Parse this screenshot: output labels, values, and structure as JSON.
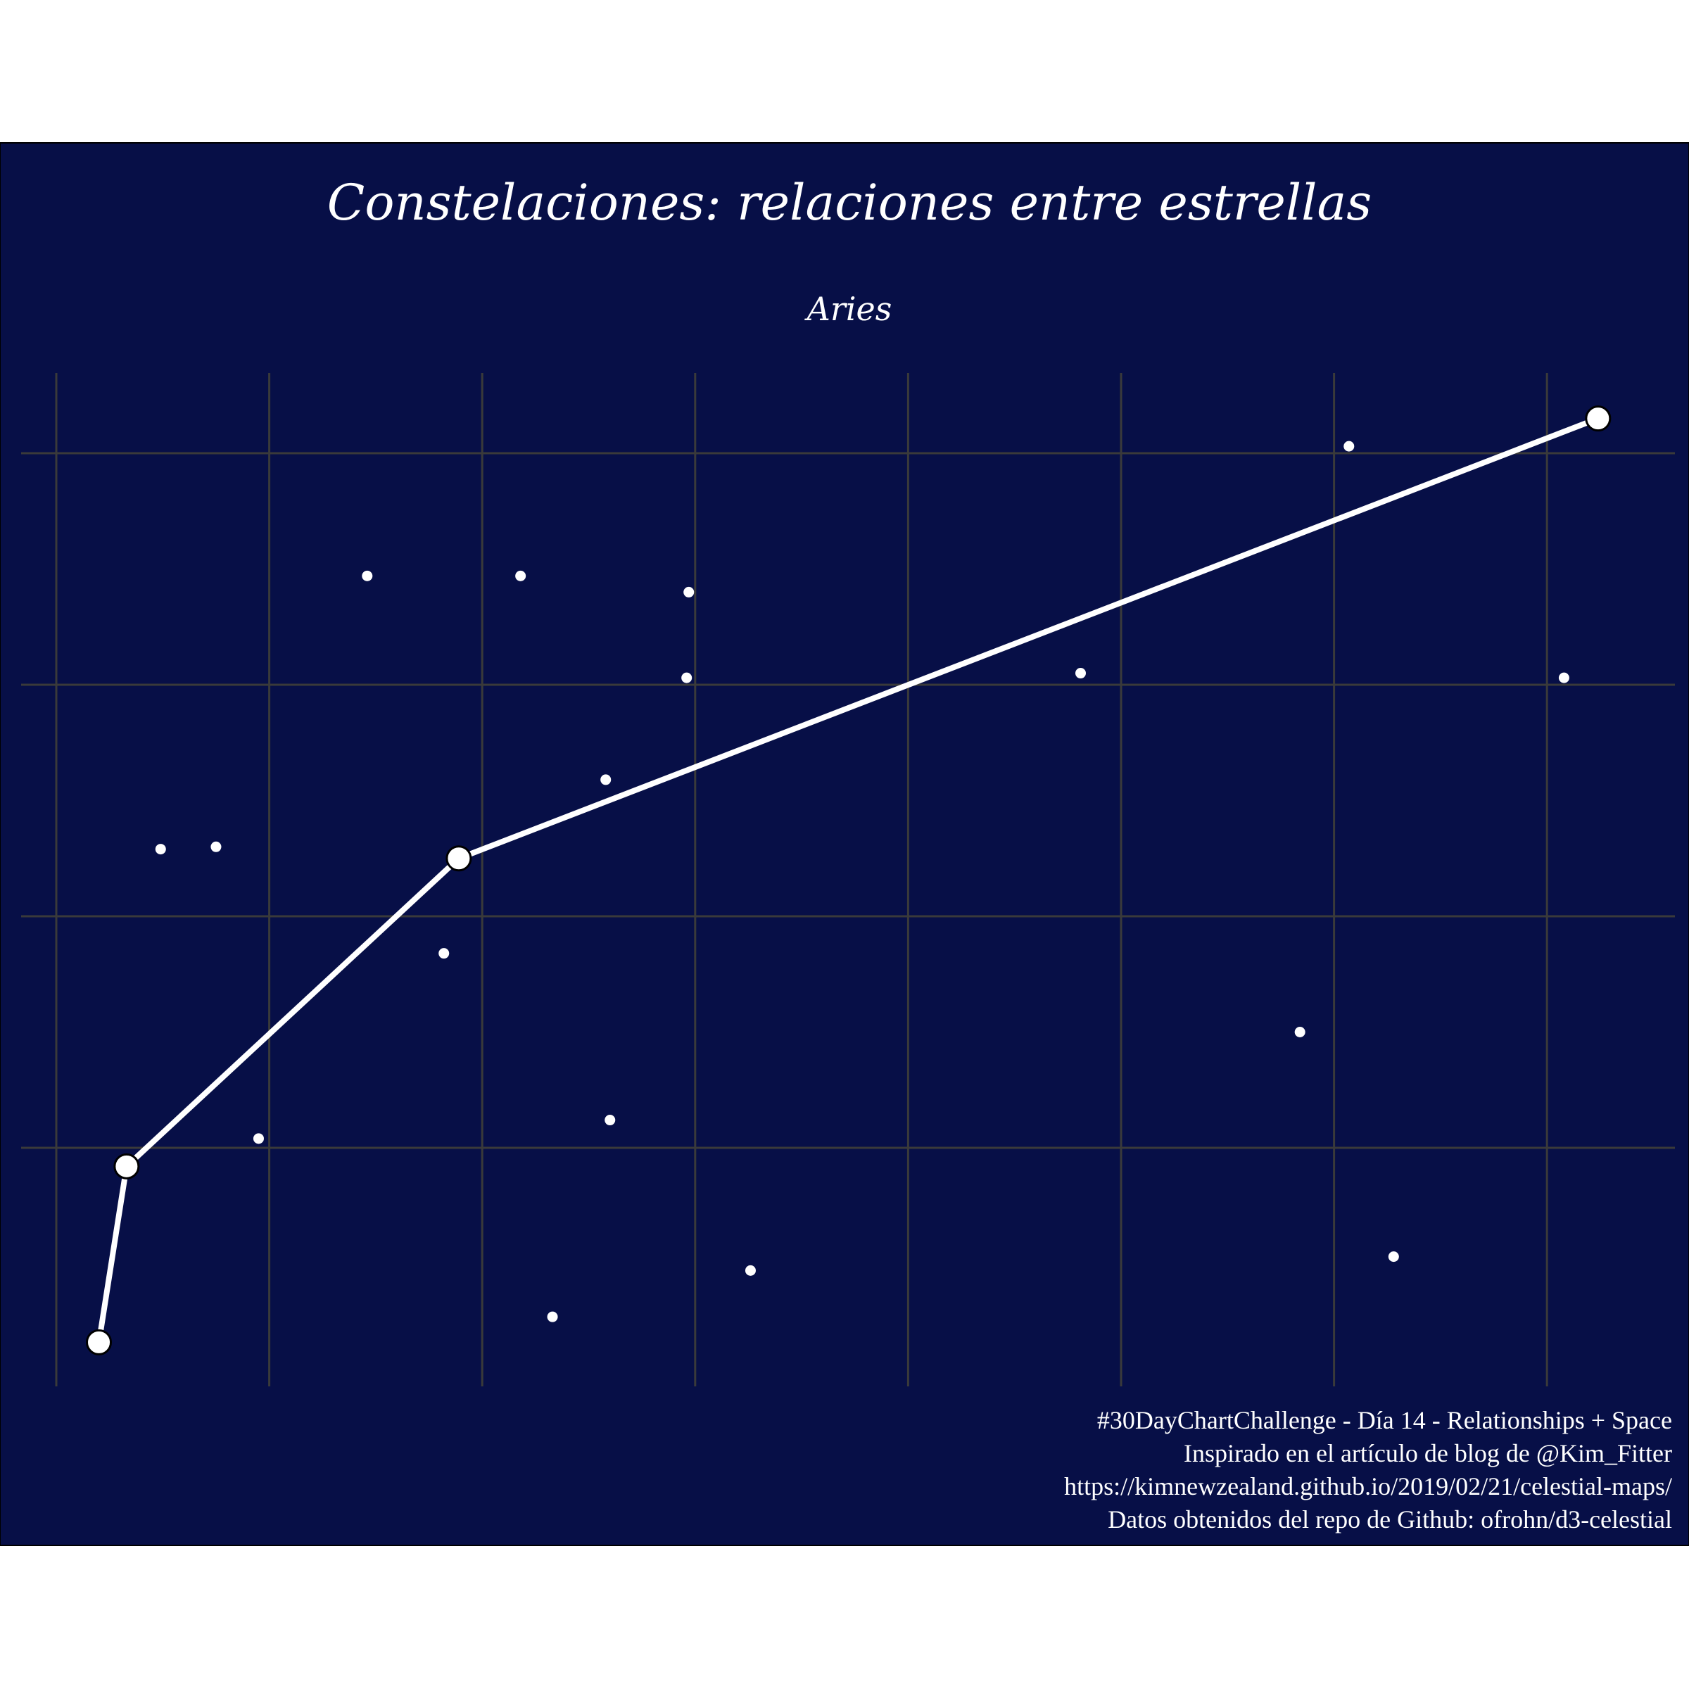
{
  "chart_data": {
    "type": "scatter",
    "title": "Constelaciones: relaciones entre estrellas",
    "subtitle": "Aries",
    "x_range": [
      0,
      7.8
    ],
    "y_range": [
      0,
      4.35
    ],
    "grid": true,
    "background_color": "#070f47",
    "grid_color": "#3a3a3a",
    "star_color": "#ffffff",
    "constellation_stars": [
      {
        "x": 0.2,
        "y": 0.16
      },
      {
        "x": 0.33,
        "y": 0.92
      },
      {
        "x": 1.89,
        "y": 2.25
      },
      {
        "x": 7.24,
        "y": 4.15
      }
    ],
    "background_stars": [
      {
        "x": 0.49,
        "y": 2.29
      },
      {
        "x": 0.75,
        "y": 2.3
      },
      {
        "x": 0.95,
        "y": 1.04
      },
      {
        "x": 1.46,
        "y": 3.47
      },
      {
        "x": 1.82,
        "y": 1.84
      },
      {
        "x": 2.18,
        "y": 3.47
      },
      {
        "x": 2.33,
        "y": 0.27
      },
      {
        "x": 2.58,
        "y": 2.59
      },
      {
        "x": 2.6,
        "y": 1.12
      },
      {
        "x": 2.96,
        "y": 3.03
      },
      {
        "x": 2.97,
        "y": 3.4
      },
      {
        "x": 3.26,
        "y": 0.47
      },
      {
        "x": 4.81,
        "y": 3.05
      },
      {
        "x": 5.84,
        "y": 1.5
      },
      {
        "x": 6.07,
        "y": 4.03
      },
      {
        "x": 6.28,
        "y": 0.53
      },
      {
        "x": 7.08,
        "y": 3.03
      }
    ]
  },
  "caption": {
    "line1": "#30DayChartChallenge - Día 14 - Relationships + Space",
    "line2": "Inspirado en el artículo de blog de @Kim_Fitter",
    "line3": "https://kimnewzealand.github.io/2019/02/21/celestial-maps/",
    "line4": "Datos obtenidos del repo de Github: ofrohn/d3-celestial"
  }
}
